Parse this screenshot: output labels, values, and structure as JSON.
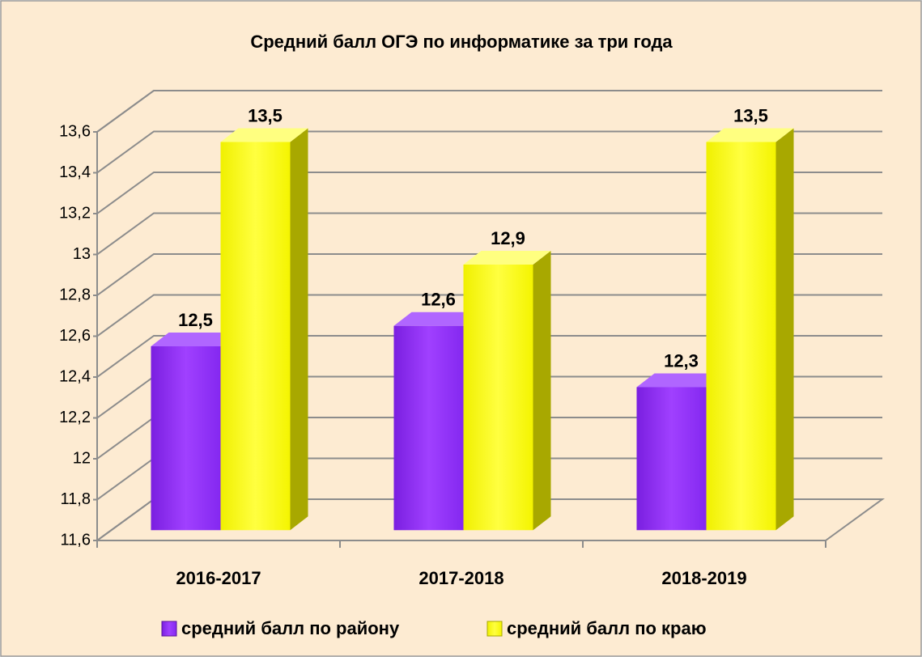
{
  "chart_data": {
    "type": "bar3d",
    "title": "Средний балл ОГЭ по информатике за три года",
    "categories": [
      "2016-2017",
      "2017-2018",
      "2018-2019"
    ],
    "series": [
      {
        "name": "средний балл по району",
        "color": "#9933ff",
        "values": [
          12.5,
          12.6,
          12.3
        ],
        "value_labels": [
          "12,5",
          "12,6",
          "12,3"
        ]
      },
      {
        "name": "средний балл по краю",
        "color": "#ffff00",
        "values": [
          13.5,
          12.9,
          13.5
        ],
        "value_labels": [
          "13,5",
          "12,9",
          "13,5"
        ]
      }
    ],
    "ylim": [
      11.6,
      13.6
    ],
    "yticks": [
      {
        "value": 11.6,
        "label": "11,6"
      },
      {
        "value": 11.8,
        "label": "11,8"
      },
      12,
      {
        "value": 12.2,
        "label": "12,2"
      },
      {
        "value": 12.4,
        "label": "12,4"
      },
      {
        "value": 12.6,
        "label": "12,6"
      },
      {
        "value": 12.8,
        "label": "12,8"
      },
      13,
      {
        "value": 13.2,
        "label": "13,2"
      },
      {
        "value": 13.4,
        "label": "13,4"
      },
      {
        "value": 13.6,
        "label": "13,6"
      }
    ],
    "grid": true,
    "legend": "bottom"
  }
}
